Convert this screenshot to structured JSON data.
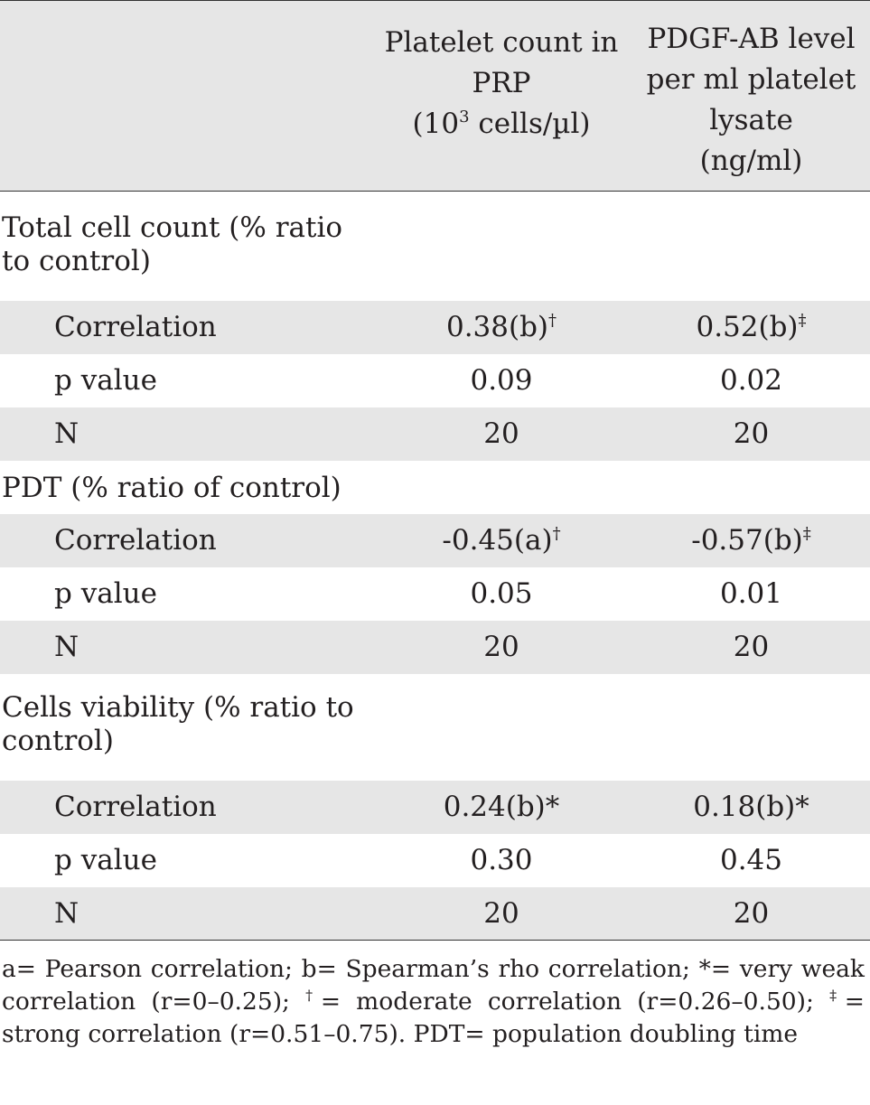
{
  "header": {
    "col1": {
      "line1": "Platelet count in",
      "line2": "PRP",
      "line3_pre": "(10",
      "line3_sup": "3",
      "line3_post": " cells/µl)"
    },
    "col2": {
      "line1": "PDGF-AB level",
      "line2": "per ml platelet",
      "line3": "lysate",
      "line4": "(ng/ml)"
    }
  },
  "groups": [
    {
      "title_line1": "Total cell count (% ratio",
      "title_line2": "to control)",
      "rows": [
        {
          "label": "Correlation",
          "v1": "0.38(b)",
          "v1_sup": "†",
          "v2": "0.52(b)",
          "v2_sup": "‡"
        },
        {
          "label": "p value",
          "v1": "0.09",
          "v1_sup": "",
          "v2": "0.02",
          "v2_sup": ""
        },
        {
          "label": "N",
          "v1": "20",
          "v1_sup": "",
          "v2": "20",
          "v2_sup": ""
        }
      ]
    },
    {
      "title_line1": "PDT (% ratio of control)",
      "title_line2": "",
      "rows": [
        {
          "label": "Correlation",
          "v1": "-0.45(a)",
          "v1_sup": "†",
          "v2": "-0.57(b)",
          "v2_sup": "‡"
        },
        {
          "label": "p value",
          "v1": "0.05",
          "v1_sup": "",
          "v2": "0.01",
          "v2_sup": ""
        },
        {
          "label": "N",
          "v1": "20",
          "v1_sup": "",
          "v2": "20",
          "v2_sup": ""
        }
      ]
    },
    {
      "title_line1": "Cells viability (% ratio to",
      "title_line2": "control)",
      "rows": [
        {
          "label": "Correlation",
          "v1": "0.24(b)*",
          "v1_sup": "",
          "v2": "0.18(b)*",
          "v2_sup": ""
        },
        {
          "label": "p value",
          "v1": "0.30",
          "v1_sup": "",
          "v2": "0.45",
          "v2_sup": ""
        },
        {
          "label": "N",
          "v1": "20",
          "v1_sup": "",
          "v2": "20",
          "v2_sup": ""
        }
      ]
    }
  ],
  "footnote": {
    "part1": "a= Pearson correlation; b= Spearman’s rho correlation; *= very weak correlation (r=0–0.25); ",
    "dagger": "†",
    "part2": "= moderate correlation (r=0.26–0.50); ",
    "ddagger": "‡",
    "part3": "= strong correlation (r=0.51–0.75). PDT= population doubling time"
  }
}
